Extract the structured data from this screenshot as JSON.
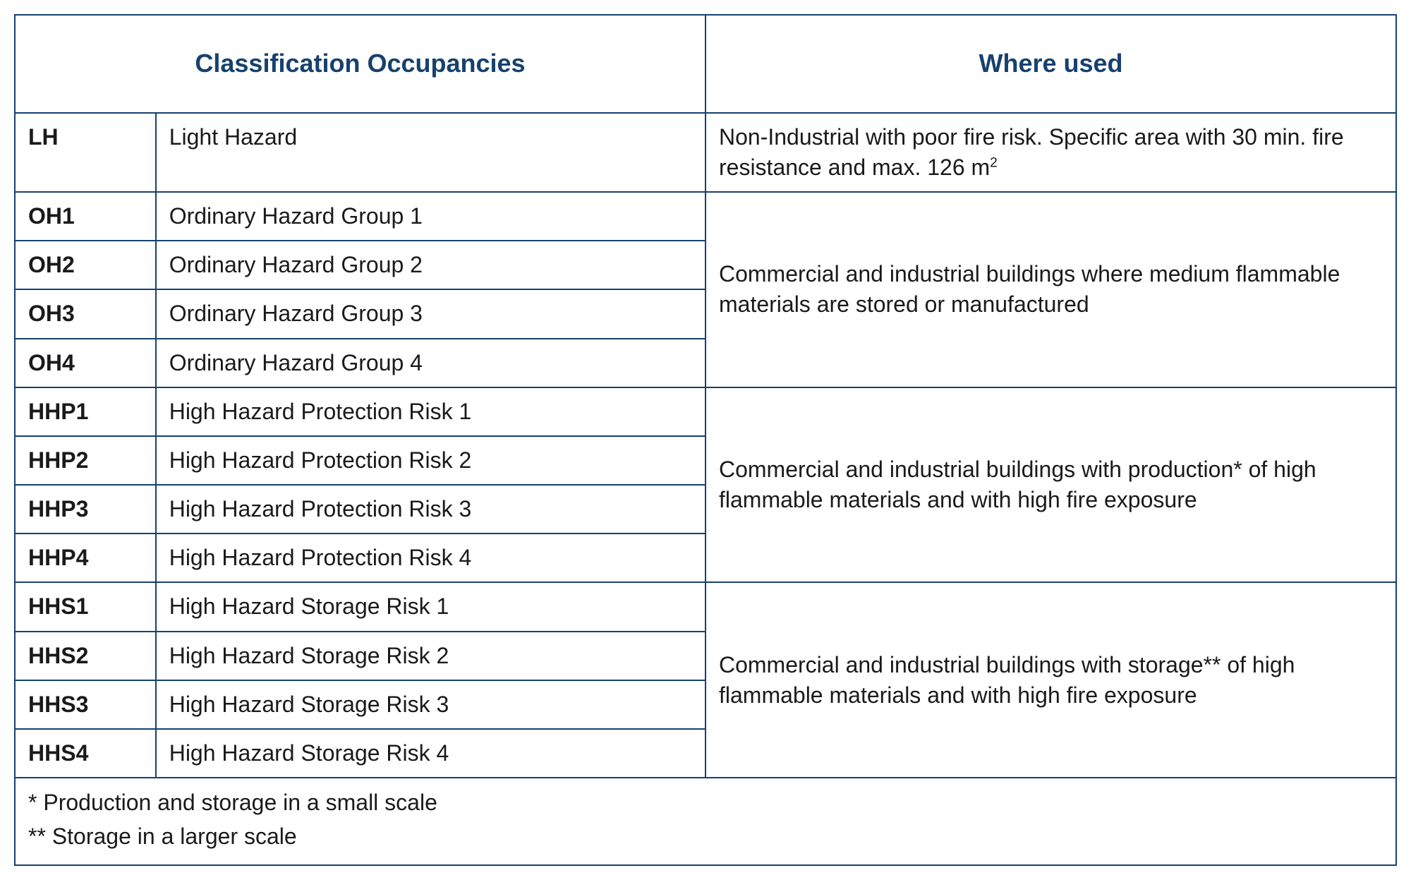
{
  "table": {
    "border_color": "#17416e",
    "header_color": "#17416e",
    "header_fontsize_pt": 27,
    "body_fontsize_pt": 24,
    "background_color": "#ffffff",
    "text_color": "#1a1a1a",
    "columns": {
      "classification_header": "Classification Occupancies",
      "where_header": "Where used",
      "code_width_pct": 10.2,
      "name_width_pct": 39.8,
      "where_width_pct": 50
    },
    "groups": [
      {
        "where_html": "Non-Industrial with poor fire risk. Specific area with 30 min. fire resistance and max. 126 m<sup>2</sup>",
        "rows": [
          {
            "code": "LH",
            "name": "Light Hazard"
          }
        ]
      },
      {
        "where_html": "Commercial and industrial buildings where medium flammable materials are stored or manufactured",
        "rows": [
          {
            "code": "OH1",
            "name": "Ordinary Hazard Group 1"
          },
          {
            "code": "OH2",
            "name": "Ordinary Hazard Group 2"
          },
          {
            "code": "OH3",
            "name": "Ordinary Hazard Group 3"
          },
          {
            "code": "OH4",
            "name": "Ordinary Hazard Group 4"
          }
        ]
      },
      {
        "where_html": "Commercial and industrial buildings with production* of high flammable materials and with high fire exposure",
        "rows": [
          {
            "code": "HHP1",
            "name": "High Hazard Protection Risk 1"
          },
          {
            "code": "HHP2",
            "name": "High Hazard Protection Risk 2"
          },
          {
            "code": "HHP3",
            "name": "High Hazard Protection Risk 3"
          },
          {
            "code": "HHP4",
            "name": "High Hazard Protection Risk 4"
          }
        ]
      },
      {
        "where_html": "Commercial and industrial buildings with stor­age** of high flammable materials and with high fire exposure",
        "rows": [
          {
            "code": "HHS1",
            "name": "High Hazard Storage Risk 1"
          },
          {
            "code": "HHS2",
            "name": "High Hazard Storage Risk 2"
          },
          {
            "code": "HHS3",
            "name": "High Hazard Storage Risk 3"
          },
          {
            "code": "HHS4",
            "name": "High Hazard Storage Risk 4"
          }
        ]
      }
    ],
    "footnotes": [
      "* Production and storage in a small scale",
      "** Storage in a larger scale"
    ]
  }
}
